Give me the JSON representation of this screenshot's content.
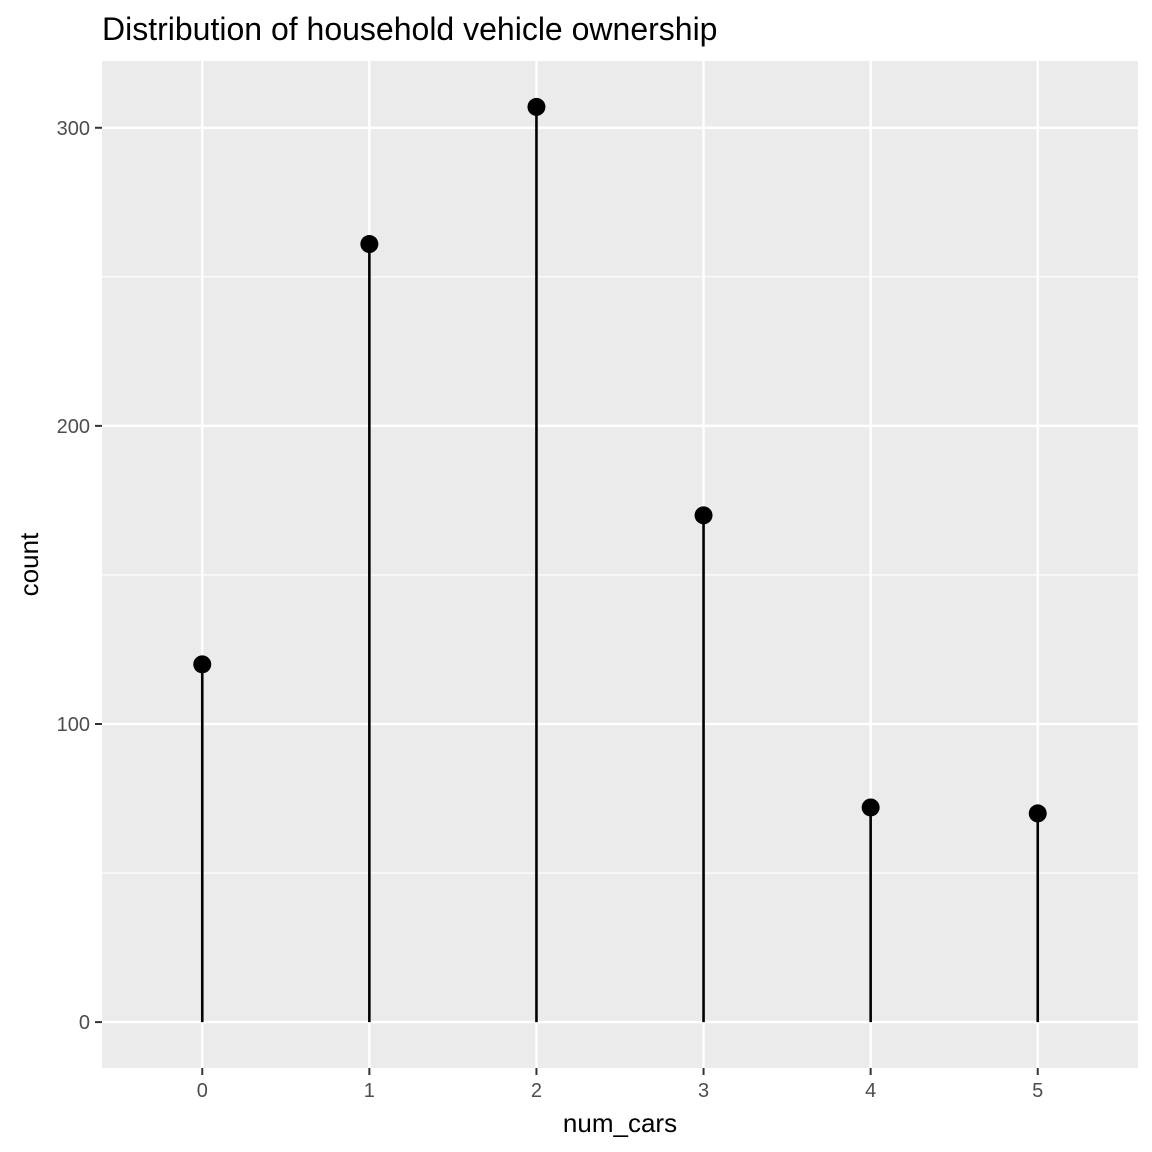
{
  "chart_data": {
    "type": "lollipop",
    "title": "Distribution of household vehicle ownership",
    "xlabel": "num_cars",
    "ylabel": "count",
    "x": [
      0,
      1,
      2,
      3,
      4,
      5
    ],
    "values": [
      120,
      261,
      307,
      170,
      72,
      70
    ],
    "x_tick_labels": [
      "0",
      "1",
      "2",
      "3",
      "4",
      "5"
    ],
    "y_ticks": [
      0,
      100,
      200,
      300
    ],
    "y_tick_labels": [
      "0",
      "100",
      "200",
      "300"
    ],
    "xlim": [
      -0.6,
      5.6
    ],
    "ylim": [
      -15.4,
      322.4
    ],
    "grid": true,
    "legend": "none",
    "colors": {
      "panel_background": "#ebebeb",
      "grid_line": "#ffffff",
      "stem": "#000000",
      "point": "#000000",
      "tick_text": "#4d4d4d",
      "tick_mark": "#333333"
    }
  }
}
